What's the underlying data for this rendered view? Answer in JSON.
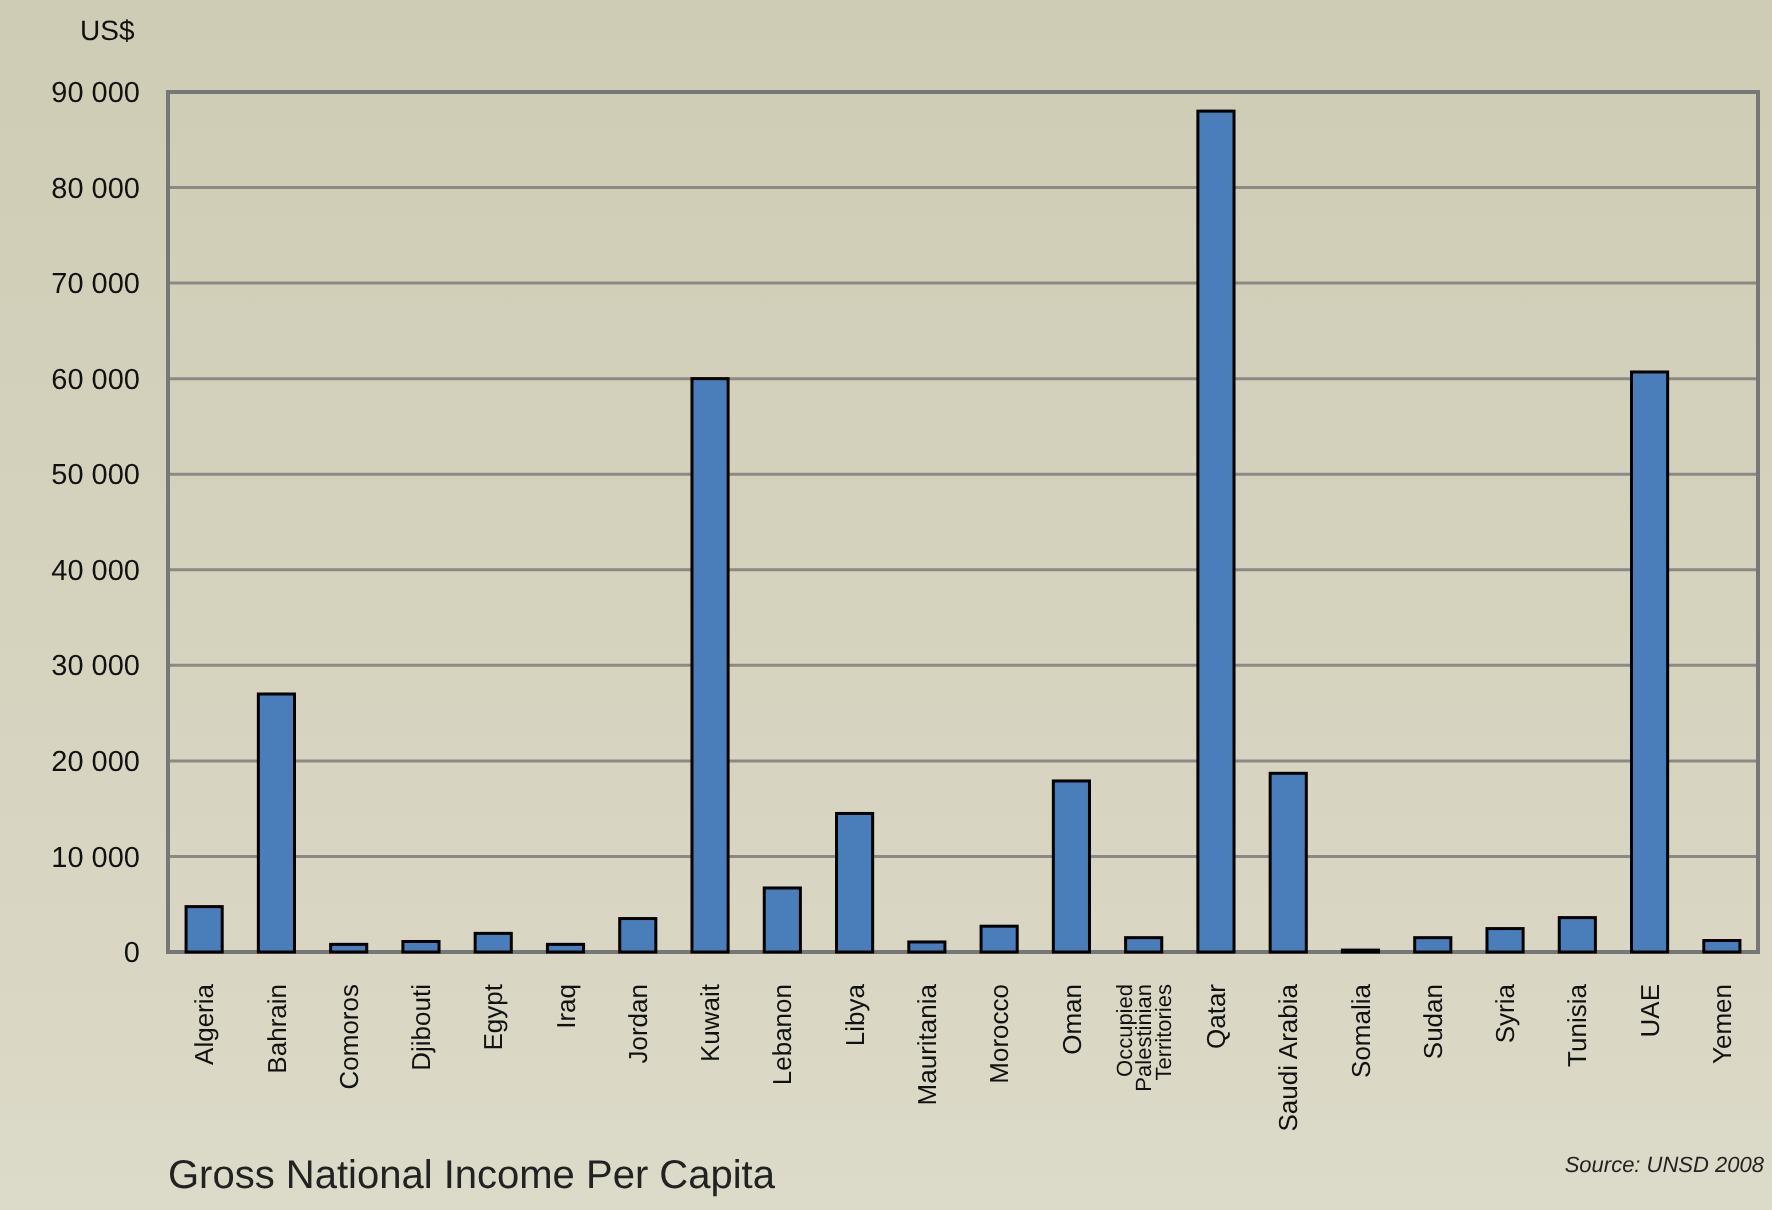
{
  "chart_data": {
    "type": "bar",
    "title": "Gross National Income Per Capita",
    "ylabel": "US$",
    "annotations": [
      "Source: UNSD 2008"
    ],
    "categories": [
      "Algeria",
      "Bahrain",
      "Comoros",
      "Djibouti",
      "Egypt",
      "Iraq",
      "Jordan",
      "Kuwait",
      "Lebanon",
      "Libya",
      "Mauritania",
      "Morocco",
      "Oman",
      "Occupied Palestinian Territories",
      "Qatar",
      "Saudi Arabia",
      "Somalia",
      "Sudan",
      "Syria",
      "Tunisia",
      "UAE",
      "Yemen"
    ],
    "values": [
      4750,
      27000,
      800,
      1100,
      1950,
      800,
      3500,
      60000,
      6700,
      14500,
      1050,
      2700,
      17900,
      1500,
      88000,
      18700,
      200,
      1500,
      2450,
      3600,
      60700,
      1200
    ],
    "color": "#4a7ebb",
    "ylim": [
      0,
      90000
    ],
    "yticks": [
      {
        "value": 0,
        "label": "0"
      },
      {
        "value": 10000,
        "label": "10 000"
      },
      {
        "value": 20000,
        "label": "20 000"
      },
      {
        "value": 30000,
        "label": "30 000"
      },
      {
        "value": 40000,
        "label": "40 000"
      },
      {
        "value": 50000,
        "label": "50 000"
      },
      {
        "value": 60000,
        "label": "60 000"
      },
      {
        "value": 70000,
        "label": "70 000"
      },
      {
        "value": 80000,
        "label": "80 000"
      },
      {
        "value": 90000,
        "label": "90 000"
      }
    ],
    "grid": "y"
  }
}
